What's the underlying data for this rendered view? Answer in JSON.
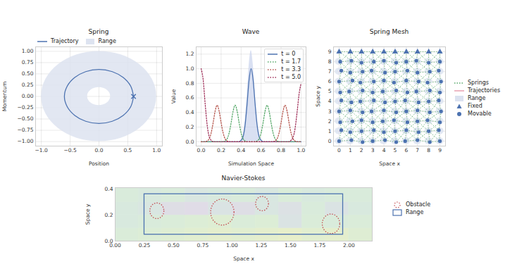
{
  "chart_data": [
    {
      "type": "phase",
      "title": "Spring",
      "x_label": "Position",
      "y_label": "Momentum",
      "xlim": [
        -1.1,
        1.1
      ],
      "ylim": [
        -1.1,
        1.1
      ],
      "xticks": [
        {
          "value": -1,
          "label": "−1.0"
        },
        {
          "value": -0.5,
          "label": "−0.5"
        },
        {
          "value": 0,
          "label": "0.0"
        },
        {
          "value": 0.5,
          "label": "0.5"
        },
        {
          "value": 1,
          "label": "1.0"
        }
      ],
      "yticks": [
        {
          "value": -1,
          "label": "−1.00"
        },
        {
          "value": -0.75,
          "label": "−0.75"
        },
        {
          "value": -0.5,
          "label": "−0.50"
        },
        {
          "value": -0.25,
          "label": "−0.25"
        },
        {
          "value": 0,
          "label": "0.00"
        },
        {
          "value": 0.25,
          "label": "0.25"
        },
        {
          "value": 0.5,
          "label": "0.50"
        },
        {
          "value": 0.75,
          "label": "0.75"
        },
        {
          "value": 1,
          "label": "1.00"
        }
      ],
      "grid": true,
      "legend": "upper left",
      "series": [
        {
          "name": "Trajectory",
          "type": "line",
          "color": "#4c72b0",
          "line_style": "solid",
          "x": [
            0.6,
            0.55,
            0.42,
            0.23,
            0,
            -0.23,
            -0.42,
            -0.55,
            -0.6,
            -0.55,
            -0.42,
            -0.23,
            0,
            0.23,
            0.42,
            0.55,
            0.6
          ],
          "values": [
            0,
            0.23,
            0.42,
            0.55,
            0.6,
            0.55,
            0.42,
            0.23,
            0,
            -0.23,
            -0.42,
            -0.55,
            -0.6,
            -0.55,
            -0.42,
            -0.23,
            0
          ]
        },
        {
          "name": "Range",
          "type": "annulus",
          "color": "#dde3f0",
          "center": [
            0,
            0
          ],
          "inner_radius": 0.2,
          "outer_radius": 1.0
        }
      ],
      "current_state": {
        "x": 0.6,
        "y": 0,
        "marker": "x",
        "color": "#4c72b0"
      }
    },
    {
      "type": "line",
      "title": "Wave",
      "x_label": "Simulation Space",
      "y_label": "Value",
      "xlim": [
        -0.05,
        1.05
      ],
      "ylim": [
        -0.06,
        1.3
      ],
      "xticks": [
        {
          "value": 0,
          "label": "0.0"
        },
        0.2,
        0.4,
        0.6,
        0.8,
        {
          "value": 1,
          "label": "1.0"
        }
      ],
      "yticks": [
        {
          "value": 0,
          "label": "0.0"
        },
        0.2,
        0.4,
        0.6,
        0.8,
        {
          "value": 1,
          "label": "1.0"
        },
        1.2
      ],
      "grid": true,
      "legend": "upper right",
      "range": {
        "color": "#c9d3ec",
        "x": [
          0.4,
          0.42,
          0.44,
          0.46,
          0.48,
          0.5,
          0.52,
          0.54,
          0.56,
          0.58,
          0.6
        ],
        "values": [
          0.02,
          0.09,
          0.29,
          0.65,
          1.06,
          1.25,
          1.06,
          0.65,
          0.29,
          0.09,
          0.02
        ]
      },
      "series": [
        {
          "name": "t = 0",
          "color": "#4c72b0",
          "line_style": "solid",
          "x": [
            0,
            0.38,
            0.4,
            0.42,
            0.44,
            0.46,
            0.48,
            0.5,
            0.52,
            0.54,
            0.56,
            0.58,
            0.6,
            0.62,
            1.0
          ],
          "values": [
            0,
            0,
            0.02,
            0.07,
            0.23,
            0.52,
            0.85,
            1.0,
            0.85,
            0.52,
            0.23,
            0.07,
            0.02,
            0,
            0
          ]
        },
        {
          "name": "t = 1.7",
          "color": "#55a868",
          "line_style": "dotted",
          "x": [
            0,
            0.22,
            0.24,
            0.26,
            0.28,
            0.3,
            0.32,
            0.34,
            0.36,
            0.38,
            0.4,
            0.42,
            0.44,
            0.46,
            0.54,
            0.56,
            0.58,
            0.6,
            0.62,
            0.64,
            0.66,
            0.68,
            0.7,
            0.72,
            0.74,
            0.76,
            0.78,
            1.0
          ],
          "values": [
            0,
            0,
            0.01,
            0.04,
            0.12,
            0.26,
            0.42,
            0.5,
            0.42,
            0.26,
            0.12,
            0.04,
            0.01,
            0,
            0,
            0.01,
            0.04,
            0.12,
            0.26,
            0.42,
            0.5,
            0.42,
            0.26,
            0.12,
            0.04,
            0.01,
            0,
            0
          ]
        },
        {
          "name": "t = 3.3",
          "color": "#b5534a",
          "line_style": "dotted",
          "x": [
            0,
            0.04,
            0.06,
            0.08,
            0.1,
            0.12,
            0.14,
            0.16,
            0.18,
            0.2,
            0.22,
            0.24,
            0.26,
            0.28,
            0.72,
            0.74,
            0.76,
            0.78,
            0.8,
            0.82,
            0.84,
            0.86,
            0.88,
            0.9,
            0.92,
            0.94,
            0.96,
            1.0
          ],
          "values": [
            0,
            0,
            0.01,
            0.04,
            0.12,
            0.26,
            0.42,
            0.5,
            0.42,
            0.26,
            0.12,
            0.04,
            0.01,
            0,
            0,
            0.01,
            0.04,
            0.12,
            0.26,
            0.42,
            0.5,
            0.42,
            0.26,
            0.12,
            0.04,
            0.01,
            0,
            0
          ]
        },
        {
          "name": "t = 5.0",
          "color": "#a0305a",
          "line_style": "dotted",
          "x": [
            0,
            0.02,
            0.04,
            0.06,
            0.08,
            0.1,
            0.12,
            0.88,
            0.9,
            0.92,
            0.94,
            0.96,
            0.98,
            1.0
          ],
          "values": [
            1.0,
            0.85,
            0.52,
            0.23,
            0.07,
            0.02,
            0,
            0,
            0.02,
            0.06,
            0.18,
            0.4,
            0.65,
            0.8
          ]
        }
      ]
    },
    {
      "type": "mesh",
      "title": "Spring Mesh",
      "x_label": "Space x",
      "y_label": "Space y",
      "xlim": [
        -0.5,
        9.5
      ],
      "ylim": [
        -0.5,
        9.5
      ],
      "xticks": [
        0,
        1,
        2,
        3,
        4,
        5,
        6,
        7,
        8,
        9
      ],
      "yticks": [
        0,
        1,
        2,
        3,
        4,
        5,
        6,
        7,
        8,
        9
      ],
      "grid": true,
      "legend": "outside right",
      "rest_x": [
        0,
        1,
        2,
        3,
        4,
        5,
        6,
        7,
        8,
        9
      ],
      "rest_y": [
        9,
        8,
        7,
        6,
        5,
        4,
        3,
        2,
        1,
        0
      ],
      "series": [
        {
          "name": "Springs",
          "type": "spring",
          "color": "#55a868",
          "line_style": "dotted"
        },
        {
          "name": "Trajectories",
          "type": "trajectory",
          "color": "#e8a0b0",
          "line_style": "solid"
        },
        {
          "name": "Range",
          "type": "range",
          "color": "#dbe2f0",
          "radius": 0.35
        },
        {
          "name": "Fixed",
          "type": "scatter",
          "marker": "triangle",
          "color": "#4c72b0",
          "x": [
            0,
            1,
            2,
            3,
            4,
            5,
            6,
            7,
            8,
            9
          ],
          "values": [
            9,
            9,
            9,
            9,
            9,
            9,
            9,
            9,
            9,
            9
          ]
        },
        {
          "name": "Movable",
          "type": "scatter",
          "marker": "circle",
          "color": "#4c72b0",
          "x": [
            0.1,
            1.1,
            2.0,
            3.1,
            4.0,
            5.1,
            6.0,
            6.9,
            8.0,
            9.0,
            0.2,
            1.0,
            2.1,
            2.9,
            4.1,
            5.0,
            6.1,
            7.0,
            8.1,
            8.9,
            0.0,
            1.2,
            1.9,
            3.1,
            4.0,
            4.9,
            6.0,
            7.1,
            7.9,
            9.1,
            0.1,
            0.9,
            2.1,
            3.0,
            3.9,
            5.1,
            6.1,
            6.9,
            8.1,
            9.0,
            0.2,
            1.1,
            1.9,
            3.1,
            4.1,
            5.0,
            5.9,
            7.1,
            8.0,
            8.9,
            0.0,
            1.0,
            2.1,
            2.9,
            4.0,
            5.1,
            6.0,
            7.0,
            8.1,
            9.1,
            0.1,
            1.2,
            2.0,
            3.0,
            3.9,
            4.9,
            6.1,
            7.0,
            7.9,
            9.0,
            0.2,
            1.0,
            2.0,
            3.1,
            4.0,
            5.0,
            6.0,
            7.1,
            8.0,
            8.9,
            0.0,
            1.1,
            2.1,
            3.0,
            4.1,
            5.1,
            5.9,
            7.0,
            8.1,
            9.0
          ],
          "values": [
            8.0,
            8.1,
            7.9,
            8.0,
            8.1,
            7.9,
            8.0,
            8.1,
            7.9,
            8.0,
            7.1,
            6.9,
            7.0,
            7.1,
            6.9,
            7.0,
            7.1,
            6.9,
            7.0,
            7.1,
            6.0,
            6.1,
            5.9,
            6.0,
            6.1,
            5.9,
            6.1,
            6.0,
            5.9,
            6.0,
            4.9,
            5.0,
            5.1,
            4.9,
            5.0,
            5.1,
            4.9,
            5.0,
            5.1,
            4.9,
            4.1,
            3.9,
            4.0,
            4.1,
            3.9,
            4.0,
            4.1,
            3.9,
            4.0,
            4.1,
            3.0,
            3.1,
            2.9,
            3.0,
            3.1,
            2.9,
            3.0,
            3.1,
            2.9,
            3.0,
            1.9,
            2.0,
            2.1,
            1.9,
            2.0,
            2.1,
            1.9,
            2.0,
            2.1,
            1.9,
            1.1,
            0.9,
            1.0,
            1.1,
            0.9,
            1.0,
            1.1,
            0.9,
            1.0,
            1.1,
            0.0,
            0.1,
            -0.1,
            0.0,
            0.1,
            -0.1,
            0.0,
            0.1,
            -0.1,
            0.0
          ]
        }
      ]
    },
    {
      "type": "flow",
      "title": "Navier-Stokes",
      "x_label": "Space x",
      "y_label": "Space y",
      "xlim": [
        0,
        2.2
      ],
      "ylim": [
        0,
        0.41
      ],
      "xticks": [
        {
          "value": 0,
          "label": "0.00"
        },
        0.25,
        {
          "value": 0.5,
          "label": "0.50"
        },
        0.75,
        {
          "value": 1,
          "label": "1.00"
        },
        1.25,
        {
          "value": 1.5,
          "label": "1.50"
        },
        1.75,
        {
          "value": 2,
          "label": "2.00"
        }
      ],
      "yticks": [
        {
          "value": 0,
          "label": "0.0"
        },
        0.2,
        0.4
      ],
      "grid": false,
      "legend": "outside right",
      "field": {
        "range": [
          -1,
          1
        ],
        "x_edges": [
          0,
          0.2,
          0.4,
          0.6,
          0.8,
          1.0,
          1.2,
          1.4,
          1.6,
          1.8,
          2.0,
          2.2
        ],
        "y_edges": [
          0,
          0.1,
          0.2,
          0.3,
          0.41
        ],
        "values": [
          [
            0.2,
            0.3,
            0.4,
            0.5,
            0.6,
            0.5,
            0.6,
            0.7,
            0.5,
            0.6,
            0.4
          ],
          [
            0,
            0.1,
            0.2,
            0.3,
            0.4,
            0.2,
            0.3,
            -0.3,
            0.2,
            0.1,
            0.2
          ],
          [
            0,
            -0.2,
            -0.5,
            -0.6,
            -0.3,
            -0.5,
            -0.2,
            -0.4,
            0.1,
            -0.3,
            0
          ],
          [
            0.1,
            0,
            0.1,
            -0.2,
            0,
            0.1,
            -0.1,
            0.2,
            0,
            0.1,
            0.1
          ]
        ]
      },
      "obstacles": {
        "name": "Obstacle",
        "color": "#c44e52",
        "line_style": "dotted",
        "circles": [
          {
            "x": 0.36,
            "y": 0.23,
            "r": 0.06
          },
          {
            "x": 0.92,
            "y": 0.22,
            "r": 0.1
          },
          {
            "x": 1.26,
            "y": 0.285,
            "r": 0.055
          },
          {
            "x": 1.85,
            "y": 0.13,
            "r": 0.075
          }
        ]
      },
      "range": {
        "name": "Range",
        "color": "#4c72b0",
        "x": [
          0.25,
          1.95
        ],
        "y": [
          0.05,
          0.36
        ]
      }
    }
  ]
}
